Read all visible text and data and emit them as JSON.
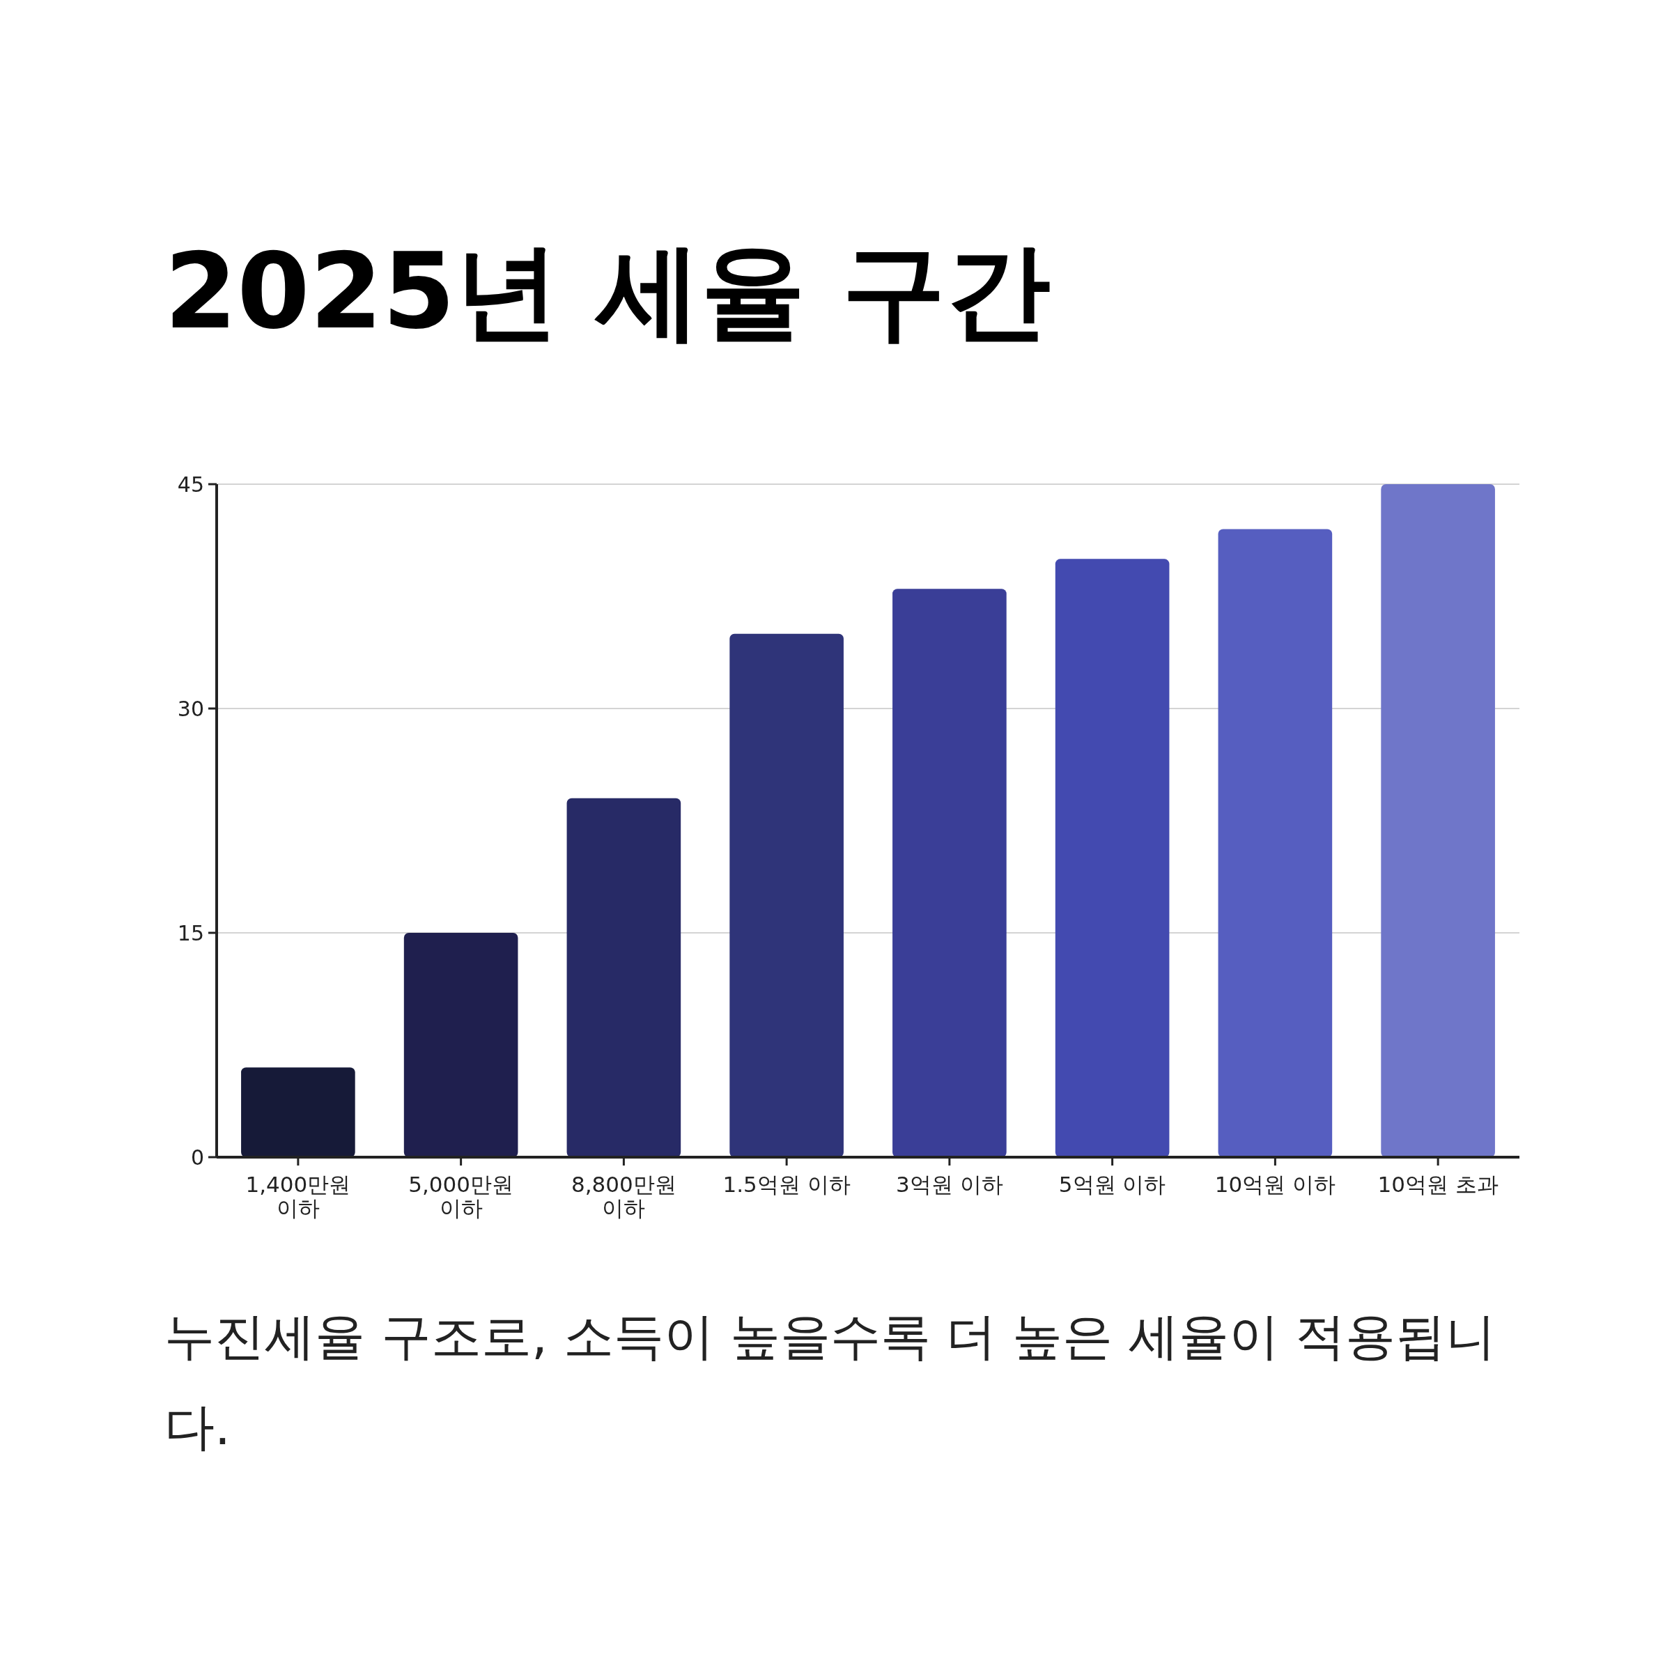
{
  "chart_data": {
    "type": "bar",
    "title": "2025년 세율 구간",
    "categories": [
      "1,400만원 이하",
      "5,000만원 이하",
      "8,800만원 이하",
      "1.5억원 이하",
      "3억원 이하",
      "5억원 이하",
      "10억원 이하",
      "10억원 초과"
    ],
    "values": [
      6,
      15,
      24,
      35,
      38,
      40,
      42,
      45
    ],
    "colors": [
      "#161a38",
      "#1f1f4e",
      "#272a66",
      "#2f3479",
      "#3a3e97",
      "#434ab0",
      "#565ec0",
      "#6f76c9"
    ],
    "ylim": [
      0,
      45
    ],
    "yticks": [
      0,
      15,
      30,
      45
    ],
    "grid": "y",
    "annotations": [
      "누진세율 구조로, 소득이 높을수록 더 높은 세율이 적용됩니다."
    ]
  }
}
